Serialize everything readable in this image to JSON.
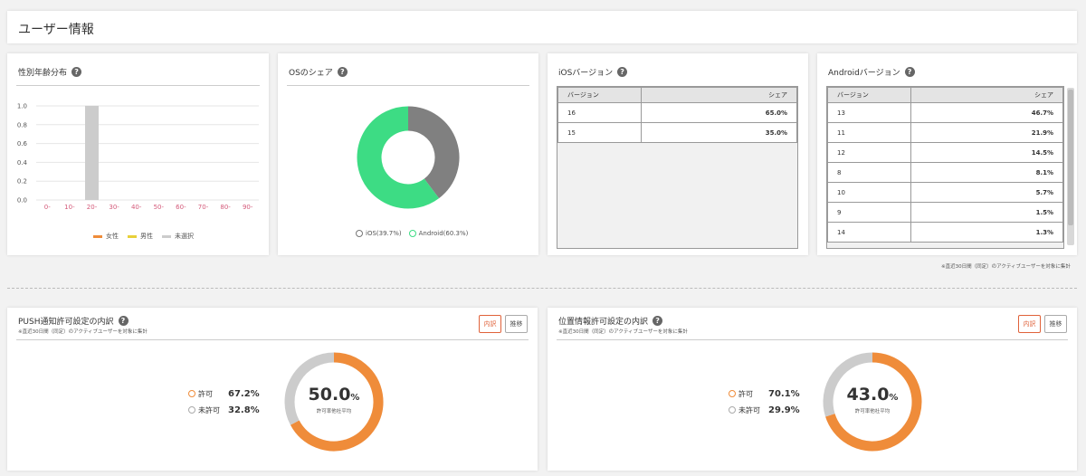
{
  "page": {
    "title": "ユーザー情報"
  },
  "gender_age": {
    "title": "性別年齢分布",
    "chart_data": {
      "type": "bar",
      "categories": [
        "0-",
        "10-",
        "20-",
        "30-",
        "40-",
        "50-",
        "60-",
        "70-",
        "80-",
        "90-"
      ],
      "series": [
        {
          "name": "女性",
          "color": "#ef8c3a",
          "values": [
            0,
            0,
            0,
            0,
            0,
            0,
            0,
            0,
            0,
            0
          ]
        },
        {
          "name": "男性",
          "color": "#e8d03a",
          "values": [
            0,
            0,
            0,
            0,
            0,
            0,
            0,
            0,
            0,
            0
          ]
        },
        {
          "name": "未選択",
          "color": "#cccccc",
          "values": [
            0,
            0,
            1.0,
            0,
            0,
            0,
            0,
            0,
            0,
            0
          ]
        }
      ],
      "ylim": [
        0,
        1.0
      ],
      "yticks": [
        "1.0",
        "0.8",
        "0.6",
        "0.4",
        "0.2",
        "0.0"
      ]
    }
  },
  "os_share": {
    "title": "OSのシェア",
    "chart_data": {
      "type": "pie",
      "series": [
        {
          "name": "iOS",
          "label": "iOS(39.7%)",
          "value": 39.7,
          "color": "#808080"
        },
        {
          "name": "Android",
          "label": "Android(60.3%)",
          "value": 60.3,
          "color": "#3ddc84"
        }
      ]
    }
  },
  "ios_versions": {
    "title": "iOSバージョン",
    "headers": [
      "バージョン",
      "シェア"
    ],
    "rows": [
      {
        "version": "16",
        "share": "65.0%"
      },
      {
        "version": "15",
        "share": "35.0%"
      }
    ]
  },
  "android_versions": {
    "title": "Androidバージョン",
    "headers": [
      "バージョン",
      "シェア"
    ],
    "rows": [
      {
        "version": "13",
        "share": "46.7%"
      },
      {
        "version": "11",
        "share": "21.9%"
      },
      {
        "version": "12",
        "share": "14.5%"
      },
      {
        "version": "8",
        "share": "8.1%"
      },
      {
        "version": "10",
        "share": "5.7%"
      },
      {
        "version": "9",
        "share": "1.5%"
      },
      {
        "version": "14",
        "share": "1.3%"
      }
    ]
  },
  "note_30days": "※直近30日間（同定）のアクティブユーザーを対象に集計",
  "push": {
    "title": "PUSH通知許可設定の内訳",
    "note": "※直近30日間（同定）のアクティブユーザーを対象に集計",
    "btn_breakdown": "内訳",
    "btn_transition": "推移",
    "allow_label": "許可",
    "allow_pct": "67.2%",
    "deny_label": "未許可",
    "deny_pct": "32.8%",
    "center_value": "50.0",
    "center_unit": "%",
    "center_sub": "許可率他社平均",
    "chart_data": {
      "type": "pie",
      "series": [
        {
          "name": "許可",
          "value": 67.2,
          "color": "#ef8c3a"
        },
        {
          "name": "未許可",
          "value": 32.8,
          "color": "#cccccc"
        }
      ]
    }
  },
  "location": {
    "title": "位置情報許可設定の内訳",
    "note": "※直近30日間（同定）のアクティブユーザーを対象に集計",
    "btn_breakdown": "内訳",
    "btn_transition": "推移",
    "allow_label": "許可",
    "allow_pct": "70.1%",
    "deny_label": "未許可",
    "deny_pct": "29.9%",
    "center_value": "43.0",
    "center_unit": "%",
    "center_sub": "許可率他社平均",
    "chart_data": {
      "type": "pie",
      "series": [
        {
          "name": "許可",
          "value": 70.1,
          "color": "#ef8c3a"
        },
        {
          "name": "未許可",
          "value": 29.9,
          "color": "#cccccc"
        }
      ]
    }
  }
}
